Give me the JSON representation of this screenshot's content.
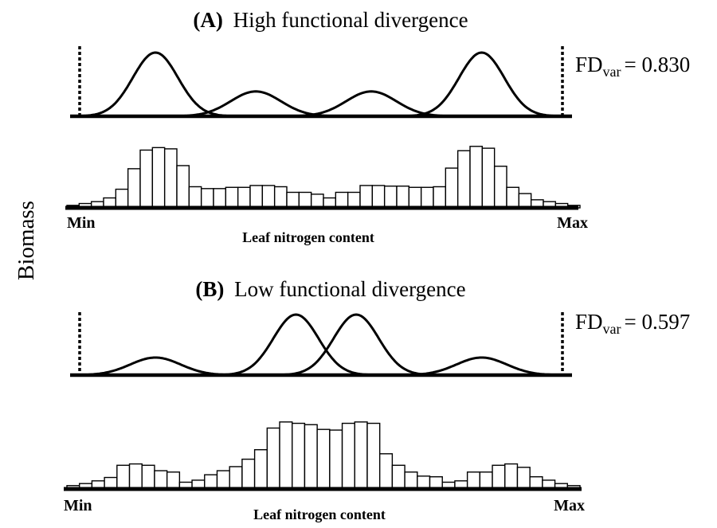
{
  "y_axis_label": "Biomass",
  "chart_data": [
    {
      "type": "line",
      "panel": "A",
      "title_letter": "(A)",
      "title_text": "High functional divergence",
      "fd_symbol": "FD",
      "fd_subscript": "var",
      "fd_value": "= 0.830",
      "series": [
        {
          "mean": 0.17,
          "sd": 0.045,
          "peak": 1.0
        },
        {
          "mean": 0.37,
          "sd": 0.05,
          "peak": 0.39
        },
        {
          "mean": 0.6,
          "sd": 0.05,
          "peak": 0.39
        },
        {
          "mean": 0.82,
          "sd": 0.045,
          "peak": 1.0
        }
      ],
      "histogram": {
        "values": [
          0.04,
          0.07,
          0.1,
          0.16,
          0.3,
          0.63,
          0.93,
          0.97,
          0.95,
          0.68,
          0.34,
          0.31,
          0.31,
          0.33,
          0.33,
          0.36,
          0.36,
          0.34,
          0.25,
          0.25,
          0.22,
          0.16,
          0.25,
          0.25,
          0.36,
          0.36,
          0.35,
          0.35,
          0.33,
          0.33,
          0.34,
          0.64,
          0.92,
          0.99,
          0.96,
          0.67,
          0.33,
          0.23,
          0.13,
          0.1,
          0.07,
          0.04
        ]
      },
      "xaxis": {
        "min_label": "Min",
        "max_label": "Max",
        "label": "Leaf nitrogen content"
      }
    },
    {
      "type": "line",
      "panel": "B",
      "title_letter": "(B)",
      "title_text": "Low functional divergence",
      "fd_symbol": "FD",
      "fd_subscript": "var",
      "fd_value": "= 0.597",
      "series": [
        {
          "mean": 0.17,
          "sd": 0.05,
          "peak": 0.29
        },
        {
          "mean": 0.45,
          "sd": 0.045,
          "peak": 1.0
        },
        {
          "mean": 0.57,
          "sd": 0.045,
          "peak": 1.0
        },
        {
          "mean": 0.82,
          "sd": 0.05,
          "peak": 0.29
        }
      ],
      "histogram": {
        "values": [
          0.05,
          0.08,
          0.12,
          0.17,
          0.35,
          0.37,
          0.35,
          0.27,
          0.25,
          0.1,
          0.13,
          0.21,
          0.27,
          0.33,
          0.44,
          0.58,
          0.9,
          0.99,
          0.97,
          0.95,
          0.88,
          0.87,
          0.97,
          0.99,
          0.97,
          0.52,
          0.35,
          0.25,
          0.19,
          0.18,
          0.1,
          0.12,
          0.25,
          0.25,
          0.35,
          0.37,
          0.32,
          0.18,
          0.13,
          0.08,
          0.05
        ]
      },
      "xaxis": {
        "min_label": "Min",
        "max_label": "Max",
        "label": "Leaf nitrogen content"
      }
    }
  ]
}
